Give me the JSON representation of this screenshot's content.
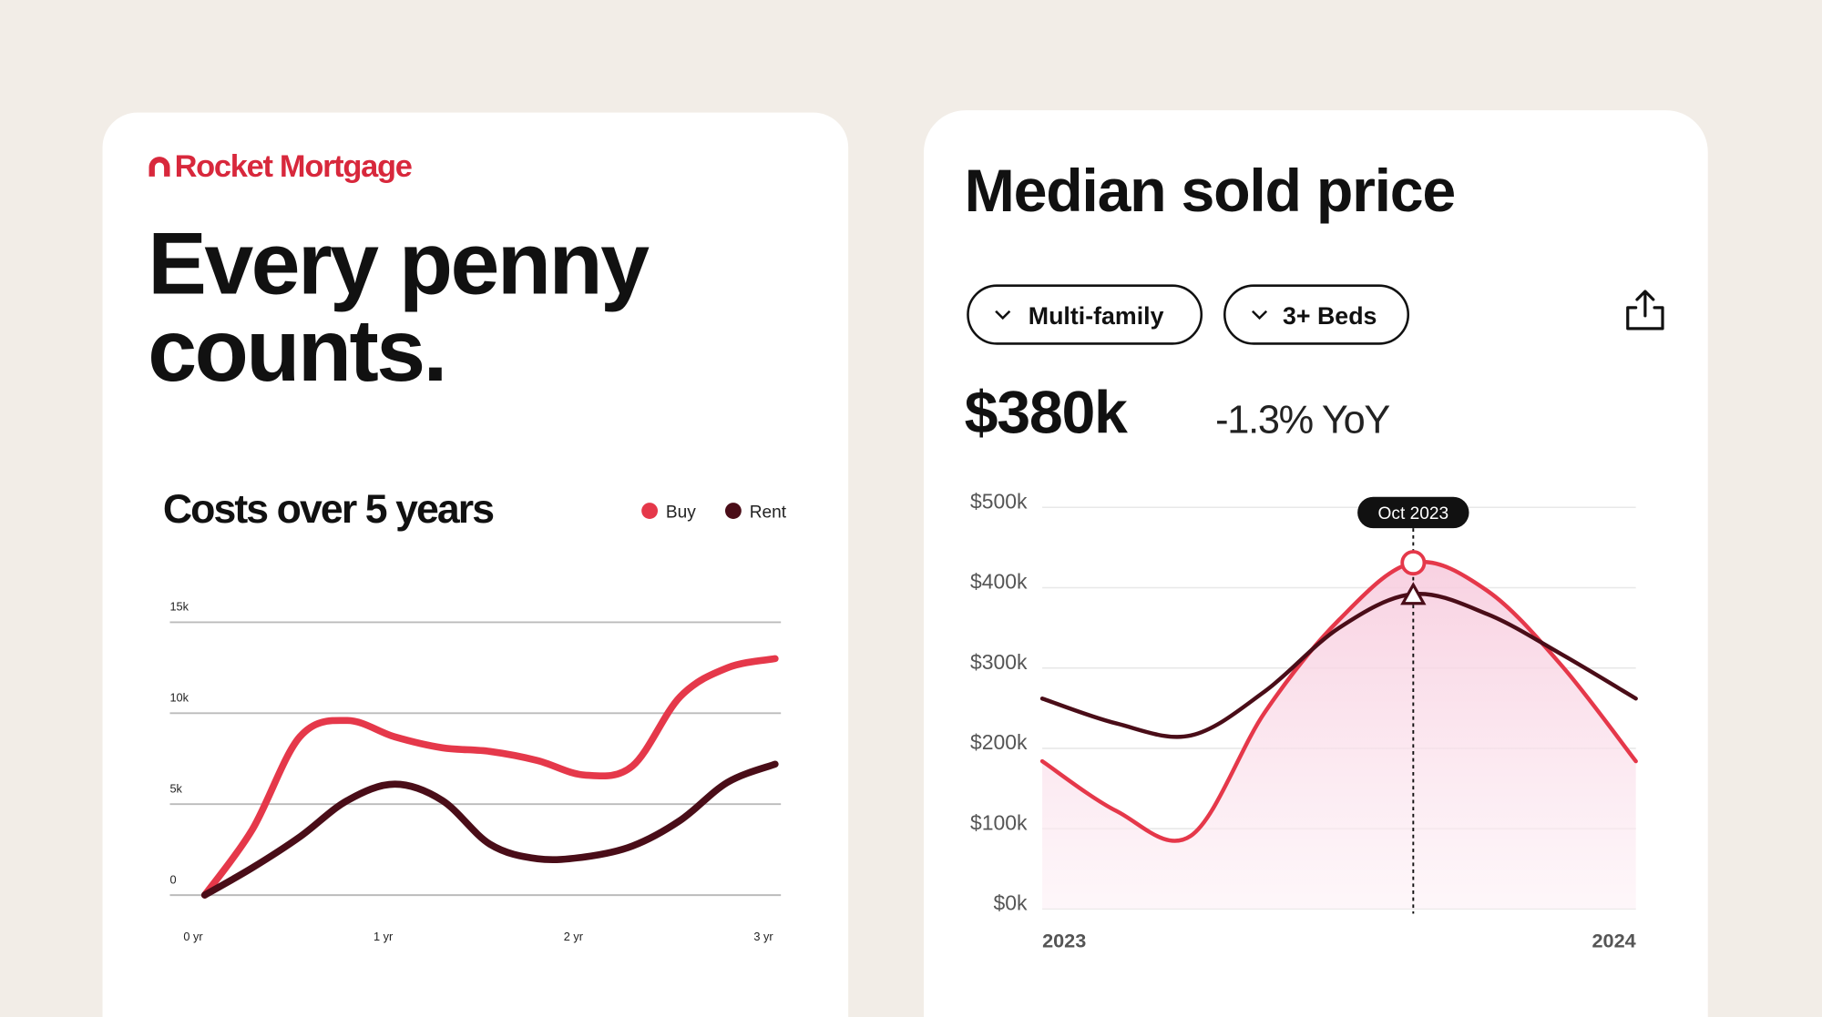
{
  "brand": "Rocket Mortgage",
  "headline": [
    "Every penny",
    "counts."
  ],
  "chart_data": [
    {
      "type": "line",
      "title": "Costs over 5 years",
      "legend": "top-right",
      "grid": true,
      "x": [
        0,
        0.25,
        0.5,
        0.75,
        1,
        1.25,
        1.5,
        1.75,
        2,
        2.25,
        2.5,
        2.75,
        3
      ],
      "xlim": [
        0,
        3
      ],
      "xticks": [
        {
          "value": 0,
          "label": "0 yr"
        },
        {
          "value": 1,
          "label": "1 yr"
        },
        {
          "value": 2,
          "label": "2 yr"
        },
        {
          "value": 3,
          "label": "3 yr"
        }
      ],
      "ylim": [
        0,
        15000
      ],
      "yticks": [
        0,
        {
          "value": 5000,
          "label": "5k"
        },
        {
          "value": 10000,
          "label": "10k"
        },
        {
          "value": 15000,
          "label": "15k"
        }
      ],
      "series": [
        {
          "name": "Buy",
          "color": "#e5384a",
          "values": [
            0,
            3600,
            8700,
            9600,
            8700,
            8100,
            7900,
            7400,
            6600,
            7100,
            10900,
            12500,
            13000
          ]
        },
        {
          "name": "Rent",
          "color": "#4a0d18",
          "values": [
            0,
            1500,
            3200,
            5200,
            6100,
            5200,
            2800,
            2000,
            2100,
            2700,
            4100,
            6200,
            7200
          ]
        }
      ]
    },
    {
      "type": "line",
      "title": "Median sold price",
      "filters": [
        "Multi-family",
        "3+ Beds"
      ],
      "headline_value": "$380k",
      "change": "-1.3% YoY",
      "grid": true,
      "categories": [
        "2023",
        null,
        null,
        null,
        null,
        "Oct 2023",
        null,
        null,
        "2024"
      ],
      "ylim": [
        0,
        500
      ],
      "yticks": [
        {
          "value": 0,
          "label": "$0k"
        },
        {
          "value": 100,
          "label": "$100k"
        },
        {
          "value": 200,
          "label": "$200k"
        },
        {
          "value": 300,
          "label": "$300k"
        },
        {
          "value": 400,
          "label": "$400k"
        },
        {
          "value": 500,
          "label": "$500k"
        }
      ],
      "series": [
        {
          "color": "#e5384a",
          "values": [
            184,
            122,
            91,
            245,
            360,
            431,
            396,
            303,
            184
          ]
        },
        {
          "color": "#4a0d18",
          "values": [
            262,
            231,
            216,
            271,
            350,
            392,
            367,
            317,
            262
          ]
        }
      ]
    }
  ]
}
